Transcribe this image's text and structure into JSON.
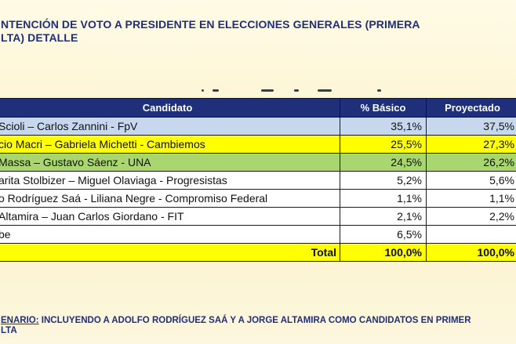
{
  "title": {
    "line1": "NTENCIÓN DE VOTO A PRESIDENTE EN ELECCIONES GENERALES (PRIMERA",
    "line2": "LTA)  DETALLE"
  },
  "table": {
    "headers": [
      "Candidato",
      "% Básico",
      "Proyectado"
    ],
    "rows": [
      {
        "candidato": "Scioli – Carlos Zannini - FpV",
        "basico": "35,1%",
        "proyectado": "37,5%",
        "color": "#c7d8ee"
      },
      {
        "candidato": "cio Macri – Gabriela Michetti  - Cambiemos",
        "basico": "25,5%",
        "proyectado": "27,3%",
        "color": "#ffff00"
      },
      {
        "candidato": "Massa – Gustavo Sáenz - UNA",
        "basico": "24,5%",
        "proyectado": "26,2%",
        "color": "#a9d66f"
      },
      {
        "candidato": "arita Stolbizer – Miguel  Olaviaga - Progresistas",
        "basico": "5,2%",
        "proyectado": "5,6%",
        "color": "#ffffff"
      },
      {
        "candidato": "o Rodríguez Saá - Liliana Negre - Compromiso Federal",
        "basico": "1,1%",
        "proyectado": "1,1%",
        "color": "#ffffff"
      },
      {
        "candidato": "Altamira – Juan Carlos Giordano - FIT",
        "basico": "2,1%",
        "proyectado": "2,2%",
        "color": "#ffffff"
      },
      {
        "candidato": "be",
        "basico": "6,5%",
        "proyectado": "",
        "color": "#ffffff"
      }
    ],
    "total": {
      "label": "Total",
      "basico": "100,0%",
      "proyectado": "100,0%"
    }
  },
  "footer": {
    "label": "ENARIO:",
    "text1": " INCLUYENDO A ADOLFO RODRÍGUEZ SAÁ Y A JORGE ALTAMIRA COMO CANDIDATOS EN PRIMER",
    "line2": "LTA"
  }
}
